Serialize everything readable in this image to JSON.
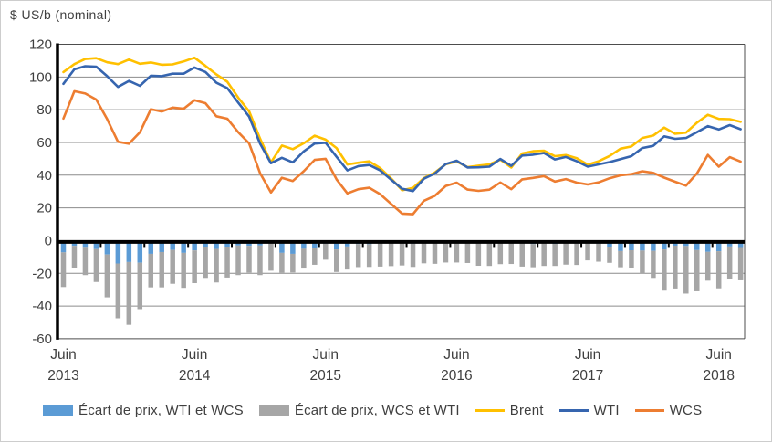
{
  "title": "$ US/b (nominal)",
  "colors": {
    "ecart_wti_bar": "#5B9BD5",
    "ecart_wcs_bar": "#A6A6A6",
    "brent_line": "#FFC000",
    "wti_line": "#3665AF",
    "wcs_line": "#ED7D31",
    "grid": "#8c8c8c",
    "axis": "#000000",
    "text": "#3f3f3f"
  },
  "legend": {
    "items": [
      {
        "label": "Écart de prix, WTI et WCS",
        "swatch": "bar",
        "color": "#5B9BD5"
      },
      {
        "label": "Écart de prix, WCS et WTI",
        "swatch": "bar",
        "color": "#A6A6A6"
      },
      {
        "label": "Brent",
        "swatch": "line",
        "color": "#FFC000"
      },
      {
        "label": "WTI",
        "swatch": "line",
        "color": "#3665AF"
      },
      {
        "label": "WCS",
        "swatch": "line",
        "color": "#ED7D31"
      }
    ]
  },
  "chart_data": {
    "type": "combo",
    "subtype": "monthly lines (crude prices) with stacked negative bars (price differentials)",
    "title": "$ US/b (nominal)",
    "xlabel": "",
    "ylabel": "$ US/b (nominal)",
    "ylim": [
      -60,
      120
    ],
    "y_ticks": [
      120,
      100,
      80,
      60,
      40,
      20,
      0,
      -20,
      -40,
      -60
    ],
    "grid": true,
    "legend_position": "bottom",
    "x_months": [
      "2013-06",
      "2013-07",
      "2013-08",
      "2013-09",
      "2013-10",
      "2013-11",
      "2013-12",
      "2014-01",
      "2014-02",
      "2014-03",
      "2014-04",
      "2014-05",
      "2014-06",
      "2014-07",
      "2014-08",
      "2014-09",
      "2014-10",
      "2014-11",
      "2014-12",
      "2015-01",
      "2015-02",
      "2015-03",
      "2015-04",
      "2015-05",
      "2015-06",
      "2015-07",
      "2015-08",
      "2015-09",
      "2015-10",
      "2015-11",
      "2015-12",
      "2016-01",
      "2016-02",
      "2016-03",
      "2016-04",
      "2016-05",
      "2016-06",
      "2016-07",
      "2016-08",
      "2016-09",
      "2016-10",
      "2016-11",
      "2016-12",
      "2017-01",
      "2017-02",
      "2017-03",
      "2017-04",
      "2017-05",
      "2017-06",
      "2017-07",
      "2017-08",
      "2017-09",
      "2017-10",
      "2017-11",
      "2017-12",
      "2018-01",
      "2018-02",
      "2018-03",
      "2018-04",
      "2018-05",
      "2018-06",
      "2018-07",
      "2018-08"
    ],
    "x_tick_labels": [
      {
        "month_index": 0,
        "line1": "Juin",
        "line2": "2013"
      },
      {
        "month_index": 12,
        "line1": "Juin",
        "line2": "2014"
      },
      {
        "month_index": 24,
        "line1": "Juin",
        "line2": "2015"
      },
      {
        "month_index": 36,
        "line1": "Juin",
        "line2": "2016"
      },
      {
        "month_index": 48,
        "line1": "Juin",
        "line2": "2017"
      },
      {
        "month_index": 60,
        "line1": "Juin",
        "line2": "2018"
      }
    ],
    "series": [
      {
        "name": "Brent",
        "type": "line",
        "color": "#FFC000",
        "values": [
          103.0,
          107.9,
          111.0,
          111.5,
          109.0,
          107.9,
          110.7,
          108.1,
          108.9,
          107.5,
          107.7,
          109.5,
          111.8,
          106.8,
          101.6,
          97.1,
          87.4,
          79.0,
          62.3,
          47.8,
          58.1,
          55.9,
          59.5,
          64.1,
          61.7,
          56.6,
          46.5,
          47.6,
          48.4,
          44.3,
          38.0,
          30.8,
          32.2,
          38.2,
          41.6,
          46.7,
          48.3,
          44.9,
          45.8,
          46.6,
          49.5,
          44.7,
          53.3,
          54.6,
          54.9,
          51.6,
          52.3,
          50.3,
          46.4,
          48.5,
          51.7,
          56.2,
          57.5,
          62.7,
          64.2,
          69.1,
          65.3,
          66.0,
          72.1,
          76.9,
          74.4,
          74.2,
          72.6
        ]
      },
      {
        "name": "WTI",
        "type": "line",
        "color": "#3665AF",
        "values": [
          95.8,
          104.7,
          106.6,
          106.3,
          100.5,
          93.9,
          97.6,
          94.6,
          100.8,
          100.5,
          102.0,
          102.0,
          105.8,
          103.1,
          96.5,
          93.2,
          84.4,
          75.8,
          59.3,
          47.3,
          50.6,
          47.8,
          54.5,
          59.3,
          59.8,
          51.2,
          42.9,
          45.5,
          46.2,
          42.9,
          37.2,
          31.7,
          30.3,
          37.8,
          41.0,
          46.8,
          48.8,
          44.7,
          44.8,
          45.2,
          49.9,
          45.7,
          52.0,
          52.5,
          53.5,
          49.6,
          51.1,
          48.5,
          45.2,
          46.6,
          48.0,
          49.8,
          51.6,
          56.6,
          57.9,
          63.7,
          62.2,
          62.7,
          66.3,
          70.0,
          67.9,
          70.6,
          68.1
        ]
      },
      {
        "name": "WCS",
        "type": "line",
        "color": "#ED7D31",
        "values": [
          74.6,
          91.3,
          89.9,
          86.2,
          74.3,
          60.4,
          59.2,
          66.2,
          80.3,
          78.9,
          81.3,
          80.6,
          85.8,
          84.0,
          76.0,
          74.5,
          66.3,
          59.4,
          41.2,
          29.4,
          38.4,
          36.4,
          42.4,
          49.3,
          50.0,
          37.4,
          28.8,
          31.4,
          32.3,
          28.4,
          22.4,
          16.5,
          16.1,
          24.3,
          27.4,
          33.4,
          35.4,
          31.2,
          30.4,
          31.1,
          35.5,
          31.4,
          37.4,
          38.3,
          39.4,
          36.1,
          37.6,
          35.4,
          34.3,
          35.6,
          38.1,
          39.9,
          40.6,
          42.4,
          41.4,
          38.5,
          36.0,
          33.6,
          41.1,
          52.4,
          45.2,
          51.0,
          48.3
        ]
      },
      {
        "name": "Écart de prix, WTI et WCS",
        "type": "bar",
        "stack": "ecart",
        "color": "#5B9BD5",
        "values": [
          -7.2,
          -3.2,
          -4.4,
          -5.2,
          -8.5,
          -14.0,
          -13.1,
          -13.5,
          -8.1,
          -7.0,
          -5.7,
          -7.5,
          -6.0,
          -3.7,
          -5.1,
          -3.9,
          -3.0,
          -3.2,
          -3.0,
          -0.5,
          -7.5,
          -8.1,
          -5.0,
          -4.8,
          -1.9,
          -5.4,
          -3.6,
          -2.1,
          -2.2,
          -1.4,
          -0.8,
          0.9,
          -1.9,
          -0.4,
          -0.6,
          0.1,
          0.5,
          -0.2,
          -1.0,
          -1.4,
          0.4,
          1.0,
          -1.3,
          -2.1,
          -1.4,
          -2.0,
          -1.2,
          -1.8,
          -1.2,
          -1.9,
          -3.7,
          -6.4,
          -5.9,
          -6.1,
          -6.3,
          -5.4,
          -3.1,
          -3.3,
          -5.8,
          -6.9,
          -6.5,
          -3.6,
          -4.5
        ]
      },
      {
        "name": "Écart de prix, WCS et WTI",
        "type": "bar",
        "stack": "ecart",
        "color": "#A6A6A6",
        "values": [
          -21.2,
          -13.4,
          -16.7,
          -20.1,
          -26.2,
          -33.5,
          -38.4,
          -28.4,
          -20.5,
          -21.6,
          -20.7,
          -21.4,
          -20.0,
          -19.1,
          -20.5,
          -18.7,
          -18.1,
          -16.4,
          -18.1,
          -17.9,
          -12.2,
          -11.4,
          -12.1,
          -10.0,
          -9.8,
          -13.8,
          -14.1,
          -14.1,
          -13.9,
          -14.5,
          -14.8,
          -15.2,
          -14.2,
          -13.5,
          -13.6,
          -13.4,
          -13.4,
          -13.5,
          -14.4,
          -14.1,
          -14.4,
          -14.3,
          -14.6,
          -14.2,
          -14.1,
          -13.5,
          -13.5,
          -13.1,
          -10.9,
          -11.0,
          -9.9,
          -9.9,
          -11.0,
          -14.2,
          -16.5,
          -25.2,
          -26.2,
          -29.1,
          -25.2,
          -17.6,
          -22.7,
          -19.6,
          -19.8
        ]
      }
    ]
  }
}
